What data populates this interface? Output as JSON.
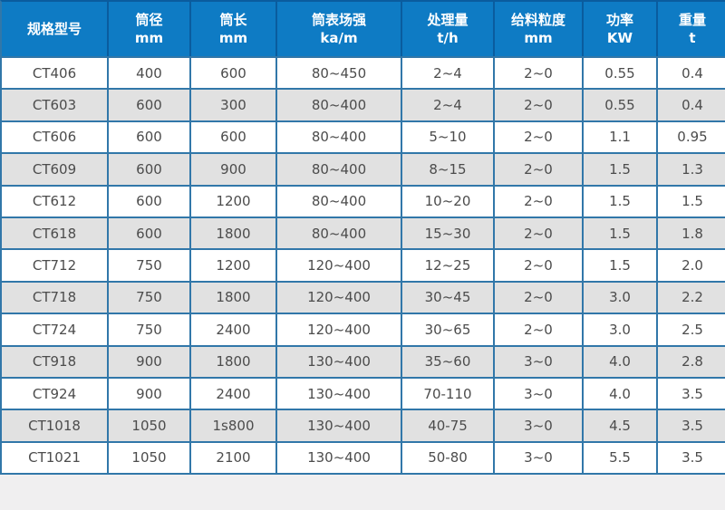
{
  "table": {
    "columns": [
      {
        "title": "规格型号",
        "unit": "",
        "width": 116
      },
      {
        "title": "筒径",
        "unit": "mm",
        "width": 91
      },
      {
        "title": "筒长",
        "unit": "mm",
        "width": 95
      },
      {
        "title": "筒表场强",
        "unit": "ka/m",
        "width": 138
      },
      {
        "title": "处理量",
        "unit": "t/h",
        "width": 102
      },
      {
        "title": "给料粒度",
        "unit": "mm",
        "width": 98
      },
      {
        "title": "功率",
        "unit": "KW",
        "width": 82
      },
      {
        "title": "重量",
        "unit": "t",
        "width": 78
      }
    ],
    "rows": [
      [
        "CT406",
        "400",
        "600",
        "80~450",
        "2~4",
        "2~0",
        "0.55",
        "0.4"
      ],
      [
        "CT603",
        "600",
        "300",
        "80~400",
        "2~4",
        "2~0",
        "0.55",
        "0.4"
      ],
      [
        "CT606",
        "600",
        "600",
        "80~400",
        "5~10",
        "2~0",
        "1.1",
        "0.95"
      ],
      [
        "CT609",
        "600",
        "900",
        "80~400",
        "8~15",
        "2~0",
        "1.5",
        "1.3"
      ],
      [
        "CT612",
        "600",
        "1200",
        "80~400",
        "10~20",
        "2~0",
        "1.5",
        "1.5"
      ],
      [
        "CT618",
        "600",
        "1800",
        "80~400",
        "15~30",
        "2~0",
        "1.5",
        "1.8"
      ],
      [
        "CT712",
        "750",
        "1200",
        "120~400",
        "12~25",
        "2~0",
        "1.5",
        "2.0"
      ],
      [
        "CT718",
        "750",
        "1800",
        "120~400",
        "30~45",
        "2~0",
        "3.0",
        "2.2"
      ],
      [
        "CT724",
        "750",
        "2400",
        "120~400",
        "30~65",
        "2~0",
        "3.0",
        "2.5"
      ],
      [
        "CT918",
        "900",
        "1800",
        "130~400",
        "35~60",
        "3~0",
        "4.0",
        "2.8"
      ],
      [
        "CT924",
        "900",
        "2400",
        "130~400",
        "70-110",
        "3~0",
        "4.0",
        "3.5"
      ],
      [
        "CT1018",
        "1050",
        "1s800",
        "130~400",
        "40-75",
        "3~0",
        "4.5",
        "3.5"
      ],
      [
        "CT1021",
        "1050",
        "2100",
        "130~400",
        "50-80",
        "3~0",
        "5.5",
        "3.5"
      ]
    ]
  },
  "colors": {
    "header_bg": "#0e7bc4",
    "header_divider": "#0a5c9e",
    "border": "#3177a9",
    "row_bg": "#ffffff",
    "row_alt_bg": "#e1e1e1",
    "text": "#4c4c4c",
    "header_text": "#ffffff",
    "page_bg": "#f0eff0"
  }
}
